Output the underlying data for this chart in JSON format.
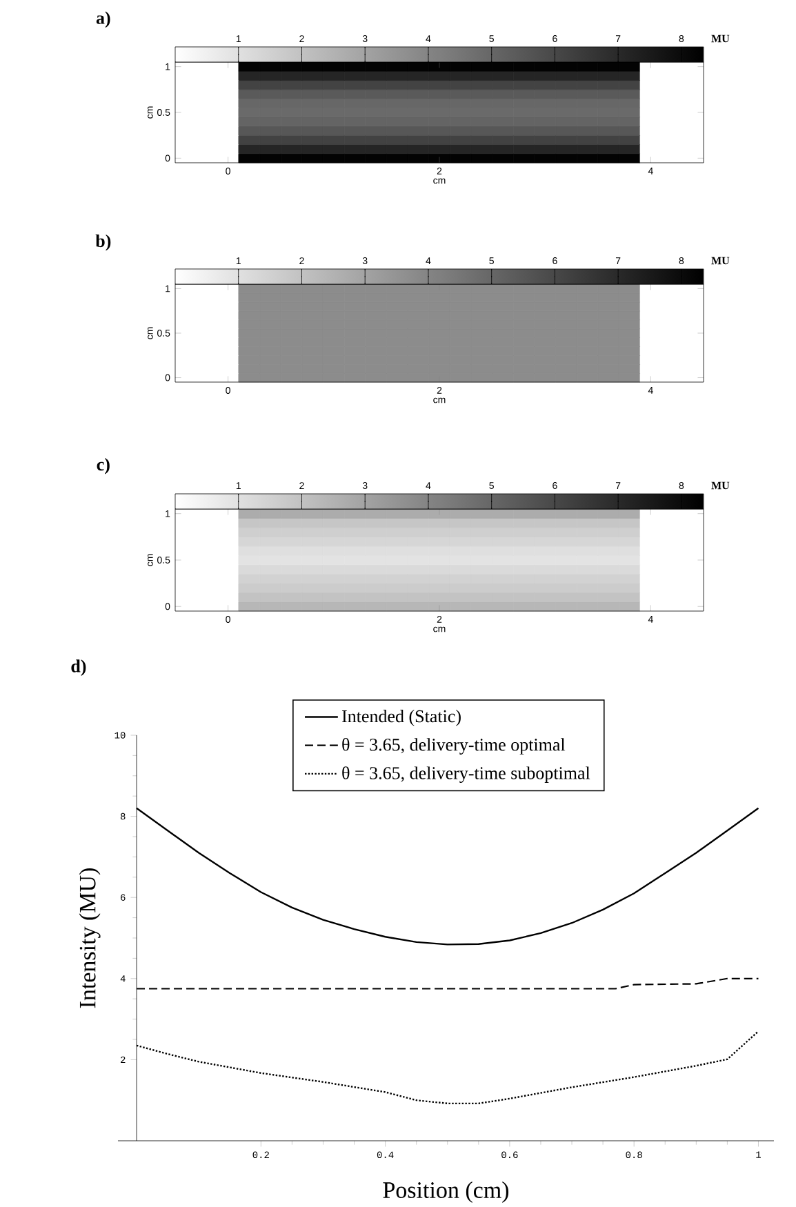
{
  "chart_data": [
    {
      "type": "heatmap",
      "title": "a)",
      "xlabel": "cm",
      "ylabel": "cm",
      "clabel": "MU",
      "categories": [
        null,
        null,
        "0",
        null,
        null,
        null,
        null,
        null,
        null,
        null,
        null,
        null,
        "2",
        null,
        null,
        null,
        null,
        null,
        null,
        null,
        null,
        null,
        "4",
        null,
        null
      ],
      "y_categories": [
        "1",
        null,
        null,
        null,
        null,
        "0.5",
        null,
        null,
        null,
        null,
        "0"
      ],
      "clim": [
        0,
        8.35
      ],
      "cticks": [
        1,
        2,
        3,
        4,
        5,
        6,
        7,
        8
      ],
      "cells": [
        [
          0,
          0,
          0,
          8.2,
          8.2,
          8.2,
          8.2,
          8.2,
          8.2,
          8.2,
          8.2,
          8.2,
          8.2,
          8.2,
          8.2,
          8.2,
          8.2,
          8.2,
          8.2,
          8.2,
          8.2,
          8.2,
          0,
          0,
          0
        ],
        [
          0,
          0,
          0,
          7.1,
          7.1,
          7.1,
          7.1,
          7.1,
          7.1,
          7.1,
          7.1,
          7.1,
          7.1,
          7.1,
          7.1,
          7.1,
          7.1,
          7.1,
          7.1,
          7.1,
          7.1,
          7.1,
          0,
          0,
          0
        ],
        [
          0,
          0,
          0,
          6.1,
          6.1,
          6.1,
          6.1,
          6.1,
          6.1,
          6.1,
          6.1,
          6.1,
          6.1,
          6.1,
          6.1,
          6.1,
          6.1,
          6.1,
          6.1,
          6.1,
          6.1,
          6.1,
          0,
          0,
          0
        ],
        [
          0,
          0,
          0,
          5.37,
          5.37,
          5.37,
          5.37,
          5.37,
          5.37,
          5.37,
          5.37,
          5.37,
          5.37,
          5.37,
          5.37,
          5.37,
          5.37,
          5.37,
          5.37,
          5.37,
          5.37,
          5.37,
          0,
          0,
          0
        ],
        [
          0,
          0,
          0,
          4.94,
          4.94,
          4.94,
          4.94,
          4.94,
          4.94,
          4.94,
          4.94,
          4.94,
          4.94,
          4.94,
          4.94,
          4.94,
          4.94,
          4.94,
          4.94,
          4.94,
          4.94,
          4.94,
          0,
          0,
          0
        ],
        [
          0,
          0,
          0,
          4.84,
          4.84,
          4.84,
          4.84,
          4.84,
          4.84,
          4.84,
          4.84,
          4.84,
          4.84,
          4.84,
          4.84,
          4.84,
          4.84,
          4.84,
          4.84,
          4.84,
          4.84,
          4.84,
          0,
          0,
          0
        ],
        [
          0,
          0,
          0,
          5.03,
          5.03,
          5.03,
          5.03,
          5.03,
          5.03,
          5.03,
          5.03,
          5.03,
          5.03,
          5.03,
          5.03,
          5.03,
          5.03,
          5.03,
          5.03,
          5.03,
          5.03,
          5.03,
          0,
          0,
          0
        ],
        [
          0,
          0,
          0,
          5.45,
          5.45,
          5.45,
          5.45,
          5.45,
          5.45,
          5.45,
          5.45,
          5.45,
          5.45,
          5.45,
          5.45,
          5.45,
          5.45,
          5.45,
          5.45,
          5.45,
          5.45,
          5.45,
          0,
          0,
          0
        ],
        [
          0,
          0,
          0,
          6.13,
          6.13,
          6.13,
          6.13,
          6.13,
          6.13,
          6.13,
          6.13,
          6.13,
          6.13,
          6.13,
          6.13,
          6.13,
          6.13,
          6.13,
          6.13,
          6.13,
          6.13,
          6.13,
          0,
          0,
          0
        ],
        [
          0,
          0,
          0,
          7.1,
          7.1,
          7.1,
          7.1,
          7.1,
          7.1,
          7.1,
          7.1,
          7.1,
          7.1,
          7.1,
          7.1,
          7.1,
          7.1,
          7.1,
          7.1,
          7.1,
          7.1,
          7.1,
          0,
          0,
          0
        ],
        [
          0,
          0,
          0,
          8.2,
          8.2,
          8.2,
          8.2,
          8.2,
          8.2,
          8.2,
          8.2,
          8.2,
          8.2,
          8.2,
          8.2,
          8.2,
          8.2,
          8.2,
          8.2,
          8.2,
          8.2,
          8.2,
          0,
          0,
          0
        ]
      ]
    },
    {
      "type": "heatmap",
      "title": "b)",
      "xlabel": "cm",
      "ylabel": "cm",
      "clabel": "MU",
      "categories": [
        null,
        null,
        "0",
        null,
        null,
        null,
        null,
        null,
        null,
        null,
        null,
        null,
        "2",
        null,
        null,
        null,
        null,
        null,
        null,
        null,
        null,
        null,
        "4",
        null,
        null
      ],
      "y_categories": [
        "1",
        null,
        null,
        null,
        null,
        "0.5",
        null,
        null,
        null,
        null,
        "0"
      ],
      "clim": [
        0,
        8.35
      ],
      "cticks": [
        1,
        2,
        3,
        4,
        5,
        6,
        7,
        8
      ],
      "cells": [
        [
          0,
          0,
          0,
          3.75,
          3.75,
          3.75,
          3.75,
          3.75,
          3.75,
          3.75,
          3.75,
          3.75,
          3.75,
          3.75,
          3.75,
          3.75,
          3.75,
          3.75,
          3.75,
          3.75,
          3.75,
          3.75,
          0,
          0,
          0
        ],
        [
          0,
          0,
          0,
          3.75,
          3.75,
          3.75,
          3.75,
          3.75,
          3.75,
          3.75,
          3.75,
          3.75,
          3.75,
          3.75,
          3.75,
          3.75,
          3.75,
          3.75,
          3.75,
          3.75,
          3.75,
          3.75,
          0,
          0,
          0
        ],
        [
          0,
          0,
          0,
          3.75,
          3.75,
          3.75,
          3.75,
          3.75,
          3.75,
          3.75,
          3.75,
          3.75,
          3.75,
          3.75,
          3.75,
          3.75,
          3.75,
          3.75,
          3.75,
          3.75,
          3.75,
          3.75,
          0,
          0,
          0
        ],
        [
          0,
          0,
          0,
          3.75,
          3.75,
          3.75,
          3.75,
          3.75,
          3.75,
          3.75,
          3.75,
          3.75,
          3.75,
          3.75,
          3.75,
          3.75,
          3.75,
          3.75,
          3.75,
          3.75,
          3.75,
          3.75,
          0,
          0,
          0
        ],
        [
          0,
          0,
          0,
          3.75,
          3.75,
          3.75,
          3.75,
          3.75,
          3.75,
          3.75,
          3.75,
          3.75,
          3.75,
          3.75,
          3.75,
          3.75,
          3.75,
          3.75,
          3.75,
          3.75,
          3.75,
          3.75,
          0,
          0,
          0
        ],
        [
          0,
          0,
          0,
          3.75,
          3.75,
          3.75,
          3.75,
          3.75,
          3.75,
          3.75,
          3.75,
          3.75,
          3.75,
          3.75,
          3.75,
          3.75,
          3.75,
          3.75,
          3.75,
          3.75,
          3.75,
          3.75,
          0,
          0,
          0
        ],
        [
          0,
          0,
          0,
          3.75,
          3.75,
          3.75,
          3.75,
          3.75,
          3.75,
          3.75,
          3.75,
          3.75,
          3.75,
          3.75,
          3.75,
          3.75,
          3.75,
          3.75,
          3.75,
          3.75,
          3.75,
          3.75,
          0,
          0,
          0
        ],
        [
          0,
          0,
          0,
          3.75,
          3.75,
          3.75,
          3.75,
          3.75,
          3.75,
          3.75,
          3.75,
          3.75,
          3.75,
          3.75,
          3.75,
          3.75,
          3.75,
          3.75,
          3.75,
          3.75,
          3.75,
          3.75,
          0,
          0,
          0
        ],
        [
          0,
          0,
          0,
          3.75,
          3.75,
          3.75,
          3.75,
          3.75,
          3.75,
          3.75,
          3.75,
          3.75,
          3.75,
          3.75,
          3.75,
          3.75,
          3.75,
          3.75,
          3.75,
          3.75,
          3.75,
          3.75,
          0,
          0,
          0
        ],
        [
          0,
          0,
          0,
          3.75,
          3.75,
          3.75,
          3.75,
          3.75,
          3.75,
          3.75,
          3.75,
          3.75,
          3.75,
          3.75,
          3.75,
          3.75,
          3.75,
          3.75,
          3.75,
          3.75,
          3.75,
          3.75,
          0,
          0,
          0
        ],
        [
          0,
          0,
          0,
          3.75,
          3.75,
          3.75,
          3.75,
          3.75,
          3.75,
          3.75,
          3.75,
          3.75,
          3.75,
          3.75,
          3.75,
          3.75,
          3.75,
          3.75,
          3.75,
          3.75,
          3.75,
          3.75,
          0,
          0,
          0
        ]
      ]
    },
    {
      "type": "heatmap",
      "title": "c)",
      "xlabel": "cm",
      "ylabel": "cm",
      "clabel": "MU",
      "categories": [
        null,
        null,
        "0",
        null,
        null,
        null,
        null,
        null,
        null,
        null,
        null,
        null,
        "2",
        null,
        null,
        null,
        null,
        null,
        null,
        null,
        null,
        null,
        "4",
        null,
        null
      ],
      "y_categories": [
        "1",
        null,
        null,
        null,
        null,
        "0.5",
        null,
        null,
        null,
        null,
        "0"
      ],
      "clim": [
        0,
        8.35
      ],
      "cticks": [
        1,
        2,
        3,
        4,
        5,
        6,
        7,
        8
      ],
      "cells": [
        [
          0,
          0,
          0,
          2.7,
          2.7,
          2.7,
          2.7,
          2.7,
          2.7,
          2.7,
          2.7,
          2.7,
          2.7,
          2.7,
          2.7,
          2.7,
          2.7,
          2.7,
          2.7,
          2.7,
          2.7,
          2.7,
          0,
          0,
          0
        ],
        [
          0,
          0,
          0,
          1.85,
          1.85,
          1.85,
          1.85,
          1.85,
          1.85,
          1.85,
          1.85,
          1.85,
          1.85,
          1.85,
          1.85,
          1.85,
          1.85,
          1.85,
          1.85,
          1.85,
          1.85,
          1.85,
          0,
          0,
          0
        ],
        [
          0,
          0,
          0,
          1.57,
          1.57,
          1.57,
          1.57,
          1.57,
          1.57,
          1.57,
          1.57,
          1.57,
          1.57,
          1.57,
          1.57,
          1.57,
          1.57,
          1.57,
          1.57,
          1.57,
          1.57,
          1.57,
          0,
          0,
          0
        ],
        [
          0,
          0,
          0,
          1.32,
          1.32,
          1.32,
          1.32,
          1.32,
          1.32,
          1.32,
          1.32,
          1.32,
          1.32,
          1.32,
          1.32,
          1.32,
          1.32,
          1.32,
          1.32,
          1.32,
          1.32,
          1.32,
          0,
          0,
          0
        ],
        [
          0,
          0,
          0,
          1.04,
          1.04,
          1.04,
          1.04,
          1.04,
          1.04,
          1.04,
          1.04,
          1.04,
          1.04,
          1.04,
          1.04,
          1.04,
          1.04,
          1.04,
          1.04,
          1.04,
          1.04,
          1.04,
          0,
          0,
          0
        ],
        [
          0,
          0,
          0,
          0.92,
          0.92,
          0.92,
          0.92,
          0.92,
          0.92,
          0.92,
          0.92,
          0.92,
          0.92,
          0.92,
          0.92,
          0.92,
          0.92,
          0.92,
          0.92,
          0.92,
          0.92,
          0.92,
          0,
          0,
          0
        ],
        [
          0,
          0,
          0,
          1.2,
          1.2,
          1.2,
          1.2,
          1.2,
          1.2,
          1.2,
          1.2,
          1.2,
          1.2,
          1.2,
          1.2,
          1.2,
          1.2,
          1.2,
          1.2,
          1.2,
          1.2,
          1.2,
          0,
          0,
          0
        ],
        [
          0,
          0,
          0,
          1.45,
          1.45,
          1.45,
          1.45,
          1.45,
          1.45,
          1.45,
          1.45,
          1.45,
          1.45,
          1.45,
          1.45,
          1.45,
          1.45,
          1.45,
          1.45,
          1.45,
          1.45,
          1.45,
          0,
          0,
          0
        ],
        [
          0,
          0,
          0,
          1.67,
          1.67,
          1.67,
          1.67,
          1.67,
          1.67,
          1.67,
          1.67,
          1.67,
          1.67,
          1.67,
          1.67,
          1.67,
          1.67,
          1.67,
          1.67,
          1.67,
          1.67,
          1.67,
          0,
          0,
          0
        ],
        [
          0,
          0,
          0,
          1.95,
          1.95,
          1.95,
          1.95,
          1.95,
          1.95,
          1.95,
          1.95,
          1.95,
          1.95,
          1.95,
          1.95,
          1.95,
          1.95,
          1.95,
          1.95,
          1.95,
          1.95,
          1.95,
          0,
          0,
          0
        ],
        [
          0,
          0,
          0,
          2.35,
          2.35,
          2.35,
          2.35,
          2.35,
          2.35,
          2.35,
          2.35,
          2.35,
          2.35,
          2.35,
          2.35,
          2.35,
          2.35,
          2.35,
          2.35,
          2.35,
          2.35,
          2.35,
          0,
          0,
          0
        ]
      ]
    },
    {
      "type": "line",
      "title": "d)",
      "xlabel": "Position (cm)",
      "ylabel": "Intensity (MU)",
      "xlim": [
        -0.03,
        1.025
      ],
      "ylim": [
        0,
        10
      ],
      "xticks": [
        0.2,
        0.4,
        0.6,
        0.8,
        1
      ],
      "yticks": [
        2,
        4,
        6,
        8,
        10
      ],
      "legend": "top",
      "series": [
        {
          "name": "Intended (Static)",
          "color": "#000000",
          "line_style": "solid",
          "x": [
            0,
            0.05,
            0.1,
            0.15,
            0.2,
            0.25,
            0.3,
            0.35,
            0.4,
            0.45,
            0.5,
            0.55,
            0.6,
            0.65,
            0.7,
            0.75,
            0.8,
            0.85,
            0.9,
            0.95,
            1
          ],
          "values": [
            8.2,
            7.65,
            7.1,
            6.6,
            6.13,
            5.75,
            5.45,
            5.22,
            5.03,
            4.9,
            4.84,
            4.85,
            4.94,
            5.12,
            5.37,
            5.7,
            6.1,
            6.6,
            7.1,
            7.65,
            8.2
          ]
        },
        {
          "name": "θ = 3.65, delivery-time optimal",
          "color": "#000000",
          "line_style": "dashed",
          "x": [
            0,
            0.77,
            0.8,
            0.9,
            0.95,
            1
          ],
          "values": [
            3.75,
            3.75,
            3.85,
            3.87,
            4.0,
            4.0
          ]
        },
        {
          "name": "θ = 3.65, delivery-time suboptimal",
          "color": "#000000",
          "line_style": "dotted",
          "x": [
            0,
            0.05,
            0.1,
            0.2,
            0.3,
            0.4,
            0.45,
            0.5,
            0.55,
            0.6,
            0.7,
            0.8,
            0.9,
            0.95,
            1
          ],
          "values": [
            2.35,
            2.14,
            1.95,
            1.67,
            1.45,
            1.2,
            1.0,
            0.92,
            0.92,
            1.04,
            1.32,
            1.57,
            1.85,
            2.01,
            2.7
          ]
        }
      ]
    }
  ]
}
